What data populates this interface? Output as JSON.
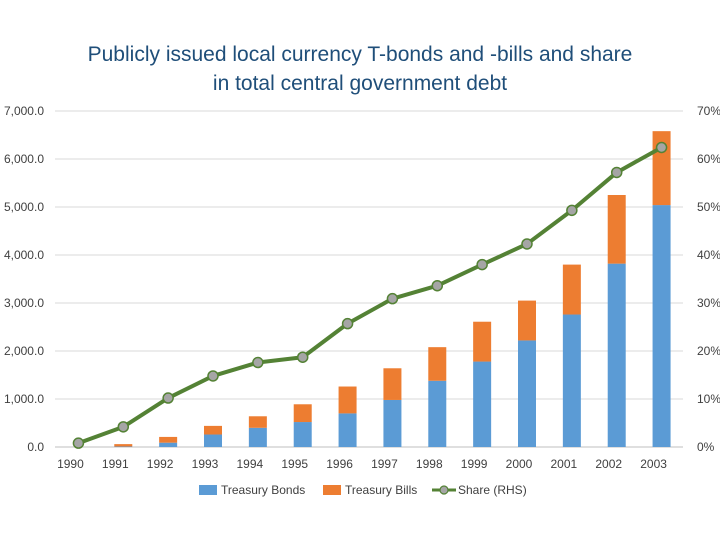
{
  "chart_data": {
    "type": "bar",
    "title_lines": [
      "Publicly issued local currency T-bonds and -bills and share",
      "in total central government debt"
    ],
    "categories": [
      "1990",
      "1991",
      "1992",
      "1993",
      "1994",
      "1995",
      "1996",
      "1997",
      "1998",
      "1999",
      "2000",
      "2001",
      "2002",
      "2003"
    ],
    "series": [
      {
        "name": "Treasury Bonds",
        "kind": "bar",
        "axis": "left",
        "color": "#5b9bd5",
        "values": [
          0,
          10,
          90,
          260,
          400,
          520,
          700,
          980,
          1380,
          1780,
          2220,
          2760,
          3820,
          5040
        ]
      },
      {
        "name": "Treasury Bills",
        "kind": "bar",
        "axis": "left",
        "color": "#ed7d31",
        "values": [
          0,
          50,
          120,
          180,
          240,
          370,
          560,
          660,
          700,
          830,
          830,
          1040,
          1430,
          1540
        ]
      },
      {
        "name": "Share (RHS)",
        "kind": "line",
        "axis": "right",
        "color": "#548235",
        "marker_color": "#a5a5a5",
        "values": [
          0.8,
          4.2,
          10.2,
          14.8,
          17.6,
          18.7,
          25.7,
          30.9,
          33.6,
          38.0,
          42.3,
          49.3,
          57.2,
          62.4
        ]
      }
    ],
    "y_left": {
      "min": 0,
      "max": 7000,
      "ticks": [
        "0.0",
        "1,000.0",
        "2,000.0",
        "3,000.0",
        "4,000.0",
        "5,000.0",
        "6,000.0",
        "7,000.0"
      ]
    },
    "y_right": {
      "min": 0,
      "max": 70,
      "ticks": [
        "0%",
        "10%",
        "20%",
        "30%",
        "40%",
        "50%",
        "60%",
        "70%"
      ]
    },
    "gridlines": true,
    "legend_position": "bottom"
  }
}
